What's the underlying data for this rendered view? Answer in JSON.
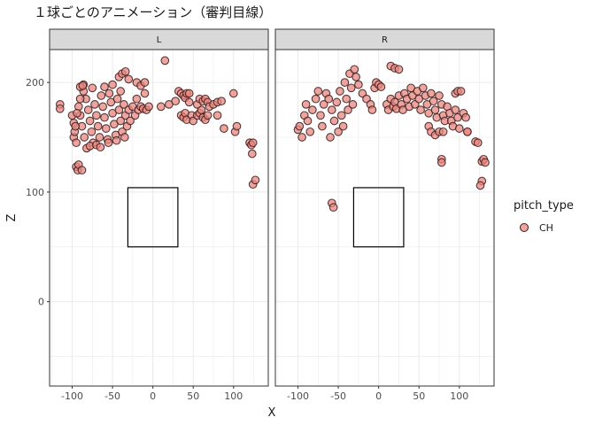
{
  "chart_data": {
    "type": "scatter",
    "title": "１球ごとのアニメーション（審判目線）",
    "xlabel": "X",
    "ylabel": "Z",
    "xlim": [
      -128,
      143
    ],
    "ylim": [
      -77,
      230
    ],
    "x_ticks": [
      -100,
      -50,
      0,
      50,
      100
    ],
    "x_tick_labels": [
      "-100",
      "-50",
      "0",
      "50",
      "100"
    ],
    "y_ticks": [
      0,
      100,
      200
    ],
    "y_tick_labels": [
      "0",
      "100",
      "200"
    ],
    "grid": true,
    "legend": {
      "title": "pitch_type",
      "position": "right",
      "entries": [
        "CH"
      ]
    },
    "colors": {
      "point_fill": "#e8877f",
      "point_stroke": "#3a1a1a",
      "strip_bg": "#d9d9d9",
      "grid": "#ebebeb"
    },
    "strike_zone": {
      "x": [
        -31,
        31
      ],
      "z": [
        50,
        104
      ]
    },
    "facets": [
      {
        "label": "L",
        "series": [
          {
            "name": "CH",
            "points": [
              [
                -115,
                180
              ],
              [
                -115,
                176
              ],
              [
                -98,
                150
              ],
              [
                -95,
                123
              ],
              [
                -93,
                120
              ],
              [
                -92,
                125
              ],
              [
                -88,
                120
              ],
              [
                -100,
                170
              ],
              [
                -98,
                163
              ],
              [
                -97,
                155
              ],
              [
                -95,
                145
              ],
              [
                -92,
                178
              ],
              [
                -90,
                170
              ],
              [
                -88,
                160
              ],
              [
                -85,
                150
              ],
              [
                -83,
                185
              ],
              [
                -80,
                175
              ],
              [
                -78,
                165
              ],
              [
                -76,
                155
              ],
              [
                -74,
                145
              ],
              [
                -72,
                180
              ],
              [
                -70,
                170
              ],
              [
                -68,
                160
              ],
              [
                -66,
                150
              ],
              [
                -64,
                188
              ],
              [
                -62,
                178
              ],
              [
                -60,
                168
              ],
              [
                -58,
                158
              ],
              [
                -56,
                148
              ],
              [
                -54,
                190
              ],
              [
                -52,
                182
              ],
              [
                -50,
                172
              ],
              [
                -48,
                162
              ],
              [
                -46,
                152
              ],
              [
                -44,
                185
              ],
              [
                -42,
                175
              ],
              [
                -40,
                165
              ],
              [
                -38,
                155
              ],
              [
                -36,
                180
              ],
              [
                -34,
                170
              ],
              [
                -32,
                160
              ],
              [
                -30,
                175
              ],
              [
                -28,
                165
              ],
              [
                -25,
                178
              ],
              [
                -22,
                170
              ],
              [
                -20,
                185
              ],
              [
                -18,
                175
              ],
              [
                -15,
                178
              ],
              [
                -12,
                176
              ],
              [
                -10,
                190
              ],
              [
                -8,
                175
              ],
              [
                -5,
                178
              ],
              [
                -96,
                160
              ],
              [
                -94,
                172
              ],
              [
                -90,
                185
              ],
              [
                -86,
                192
              ],
              [
                -82,
                140
              ],
              [
                -78,
                142
              ],
              [
                -75,
                195
              ],
              [
                -70,
                143
              ],
              [
                -65,
                141
              ],
              [
                -60,
                196
              ],
              [
                -55,
                145
              ],
              [
                -50,
                198
              ],
              [
                -45,
                147
              ],
              [
                -40,
                192
              ],
              [
                -35,
                150
              ],
              [
                -42,
                205
              ],
              [
                -38,
                208
              ],
              [
                -34,
                210
              ],
              [
                -30,
                203
              ],
              [
                -20,
                200
              ],
              [
                -15,
                197
              ],
              [
                -10,
                200
              ],
              [
                15,
                220
              ],
              [
                -86,
                198
              ],
              [
                -90,
                196
              ],
              [
                -87,
                197
              ],
              [
                10,
                178
              ],
              [
                20,
                180
              ],
              [
                28,
                183
              ],
              [
                32,
                192
              ],
              [
                35,
                190
              ],
              [
                38,
                188
              ],
              [
                40,
                186
              ],
              [
                42,
                190
              ],
              [
                45,
                190
              ],
              [
                35,
                170
              ],
              [
                38,
                168
              ],
              [
                40,
                172
              ],
              [
                42,
                166
              ],
              [
                48,
                170
              ],
              [
                50,
                165
              ],
              [
                55,
                170
              ],
              [
                58,
                172
              ],
              [
                60,
                175
              ],
              [
                45,
                182
              ],
              [
                55,
                180
              ],
              [
                58,
                185
              ],
              [
                62,
                183
              ],
              [
                65,
                185
              ],
              [
                68,
                182
              ],
              [
                70,
                178
              ],
              [
                62,
                168
              ],
              [
                65,
                166
              ],
              [
                68,
                170
              ],
              [
                75,
                180
              ],
              [
                80,
                182
              ],
              [
                85,
                183
              ],
              [
                80,
                170
              ],
              [
                88,
                158
              ],
              [
                100,
                190
              ],
              [
                102,
                155
              ],
              [
                104,
                160
              ],
              [
                120,
                145
              ],
              [
                122,
                143
              ],
              [
                124,
                145
              ],
              [
                123,
                135
              ],
              [
                124,
                107
              ],
              [
                127,
                111
              ]
            ]
          }
        ]
      },
      {
        "label": "R",
        "series": [
          {
            "name": "CH",
            "points": [
              [
                -100,
                157
              ],
              [
                -98,
                160
              ],
              [
                -95,
                150
              ],
              [
                -92,
                170
              ],
              [
                -90,
                180
              ],
              [
                -88,
                165
              ],
              [
                -85,
                155
              ],
              [
                -82,
                175
              ],
              [
                -78,
                185
              ],
              [
                -75,
                192
              ],
              [
                -72,
                170
              ],
              [
                -70,
                160
              ],
              [
                -68,
                180
              ],
              [
                -65,
                190
              ],
              [
                -62,
                185
              ],
              [
                -60,
                150
              ],
              [
                -58,
                175
              ],
              [
                -55,
                165
              ],
              [
                -52,
                182
              ],
              [
                -50,
                155
              ],
              [
                -48,
                192
              ],
              [
                -46,
                170
              ],
              [
                -44,
                160
              ],
              [
                -42,
                200
              ],
              [
                -40,
                185
              ],
              [
                -38,
                175
              ],
              [
                -36,
                208
              ],
              [
                -34,
                195
              ],
              [
                -32,
                180
              ],
              [
                -30,
                212
              ],
              [
                -28,
                205
              ],
              [
                -25,
                198
              ],
              [
                -20,
                190
              ],
              [
                -15,
                185
              ],
              [
                -10,
                180
              ],
              [
                -8,
                175
              ],
              [
                -5,
                195
              ],
              [
                -58,
                90
              ],
              [
                -56,
                86
              ],
              [
                -3,
                200
              ],
              [
                0,
                198
              ],
              [
                3,
                196
              ],
              [
                15,
                215
              ],
              [
                20,
                213
              ],
              [
                25,
                212
              ],
              [
                10,
                180
              ],
              [
                12,
                175
              ],
              [
                15,
                185
              ],
              [
                18,
                178
              ],
              [
                20,
                182
              ],
              [
                22,
                176
              ],
              [
                25,
                188
              ],
              [
                28,
                180
              ],
              [
                30,
                175
              ],
              [
                32,
                190
              ],
              [
                35,
                185
              ],
              [
                38,
                178
              ],
              [
                40,
                195
              ],
              [
                42,
                188
              ],
              [
                45,
                180
              ],
              [
                48,
                192
              ],
              [
                50,
                185
              ],
              [
                52,
                175
              ],
              [
                55,
                195
              ],
              [
                58,
                188
              ],
              [
                60,
                180
              ],
              [
                62,
                172
              ],
              [
                65,
                190
              ],
              [
                68,
                183
              ],
              [
                70,
                175
              ],
              [
                72,
                168
              ],
              [
                75,
                188
              ],
              [
                78,
                180
              ],
              [
                80,
                170
              ],
              [
                82,
                165
              ],
              [
                85,
                178
              ],
              [
                88,
                172
              ],
              [
                90,
                165
              ],
              [
                92,
                160
              ],
              [
                95,
                175
              ],
              [
                98,
                168
              ],
              [
                100,
                158
              ],
              [
                95,
                190
              ],
              [
                98,
                192
              ],
              [
                102,
                192
              ],
              [
                105,
                172
              ],
              [
                108,
                168
              ],
              [
                62,
                160
              ],
              [
                65,
                155
              ],
              [
                70,
                152
              ],
              [
                75,
                155
              ],
              [
                80,
                155
              ],
              [
                78,
                130
              ],
              [
                78,
                127
              ],
              [
                120,
                146
              ],
              [
                123,
                145
              ],
              [
                110,
                155
              ],
              [
                110,
                155
              ],
              [
                128,
                128
              ],
              [
                130,
                130
              ],
              [
                132,
                127
              ],
              [
                128,
                110
              ],
              [
                126,
                106
              ]
            ]
          }
        ]
      }
    ]
  }
}
